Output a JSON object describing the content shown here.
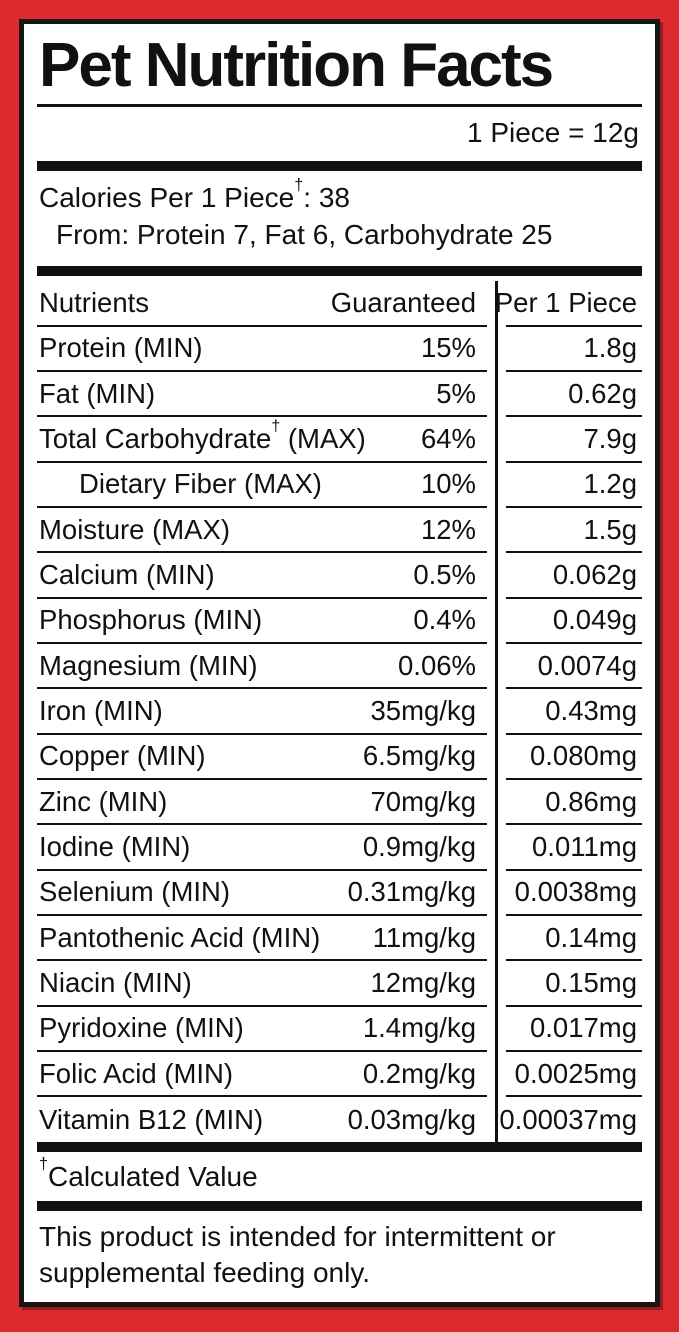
{
  "colors": {
    "frame_red": "#dc2a2e",
    "text_black": "#111111",
    "panel_white": "#ffffff"
  },
  "header": {
    "title": "Pet Nutrition Facts",
    "serving": "1 Piece = 12g"
  },
  "calories": {
    "prefix": "Calories Per 1 Piece",
    "dagger": "†",
    "suffix": ": 38",
    "from_line": "From: Protein 7, Fat 6, Carbohydrate 25"
  },
  "table": {
    "col_nutrients": "Nutrients",
    "col_guaranteed": "Guaranteed",
    "col_per_piece": "Per 1 Piece",
    "rows": [
      {
        "name": "Protein (MIN)",
        "dagger": "",
        "suffix": "",
        "guaranteed": "15%",
        "per_piece": "1.8g"
      },
      {
        "name": "Fat (MIN)",
        "dagger": "",
        "suffix": "",
        "guaranteed": "5%",
        "per_piece": "0.62g"
      },
      {
        "name": "Total Carbohydrate",
        "dagger": "†",
        "suffix": " (MAX)",
        "guaranteed": "64%",
        "per_piece": "7.9g"
      },
      {
        "name": "Dietary Fiber (MAX)",
        "dagger": "",
        "suffix": "",
        "guaranteed": "10%",
        "per_piece": "1.2g"
      },
      {
        "name": "Moisture (MAX)",
        "dagger": "",
        "suffix": "",
        "guaranteed": "12%",
        "per_piece": "1.5g"
      },
      {
        "name": "Calcium (MIN)",
        "dagger": "",
        "suffix": "",
        "guaranteed": "0.5%",
        "per_piece": "0.062g"
      },
      {
        "name": "Phosphorus (MIN)",
        "dagger": "",
        "suffix": "",
        "guaranteed": "0.4%",
        "per_piece": "0.049g"
      },
      {
        "name": "Magnesium (MIN)",
        "dagger": "",
        "suffix": "",
        "guaranteed": "0.06%",
        "per_piece": "0.0074g"
      },
      {
        "name": "Iron (MIN)",
        "dagger": "",
        "suffix": "",
        "guaranteed": "35mg/kg",
        "per_piece": "0.43mg"
      },
      {
        "name": "Copper (MIN)",
        "dagger": "",
        "suffix": "",
        "guaranteed": "6.5mg/kg",
        "per_piece": "0.080mg"
      },
      {
        "name": "Zinc (MIN)",
        "dagger": "",
        "suffix": "",
        "guaranteed": "70mg/kg",
        "per_piece": "0.86mg"
      },
      {
        "name": "Iodine (MIN)",
        "dagger": "",
        "suffix": "",
        "guaranteed": "0.9mg/kg",
        "per_piece": "0.011mg"
      },
      {
        "name": "Selenium (MIN)",
        "dagger": "",
        "suffix": "",
        "guaranteed": "0.31mg/kg",
        "per_piece": "0.0038mg"
      },
      {
        "name": "Pantothenic Acid (MIN)",
        "dagger": "",
        "suffix": "",
        "guaranteed": "11mg/kg",
        "per_piece": "0.14mg"
      },
      {
        "name": "Niacin (MIN)",
        "dagger": "",
        "suffix": "",
        "guaranteed": "12mg/kg",
        "per_piece": "0.15mg"
      },
      {
        "name": "Pyridoxine (MIN)",
        "dagger": "",
        "suffix": "",
        "guaranteed": "1.4mg/kg",
        "per_piece": "0.017mg"
      },
      {
        "name": "Folic Acid (MIN)",
        "dagger": "",
        "suffix": "",
        "guaranteed": "0.2mg/kg",
        "per_piece": "0.0025mg"
      },
      {
        "name": "Vitamin B12 (MIN)",
        "dagger": "",
        "suffix": "",
        "guaranteed": "0.03mg/kg",
        "per_piece": "0.00037mg"
      }
    ]
  },
  "footnote": {
    "dagger": "†",
    "text": "Calculated Value"
  },
  "footer": {
    "text": "This product is intended for intermittent or supplemental feeding only."
  }
}
